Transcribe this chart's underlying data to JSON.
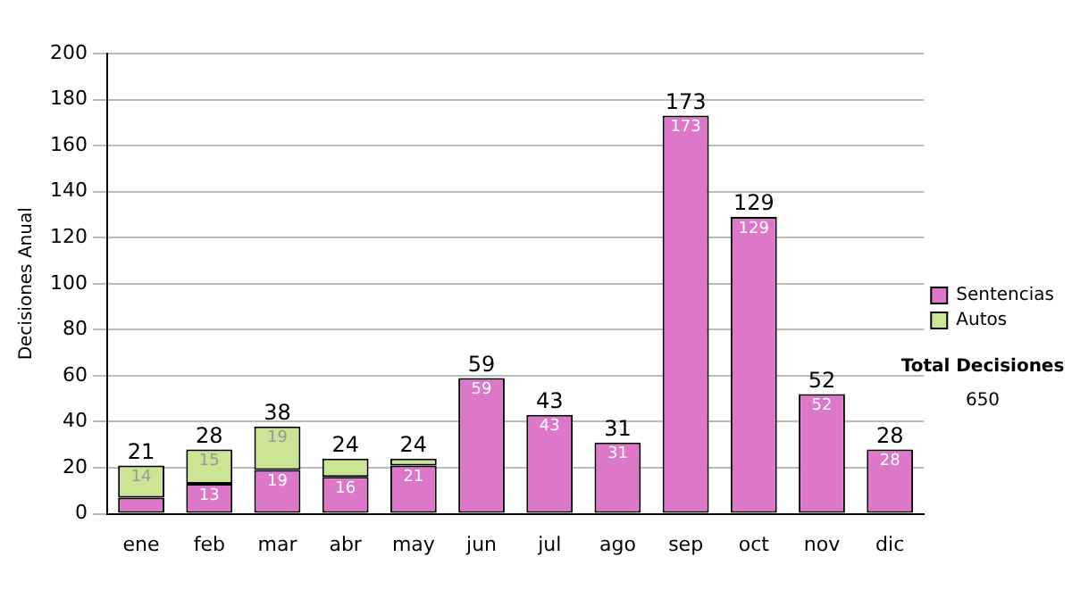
{
  "chart_data": {
    "type": "bar",
    "stacked": true,
    "ylabel": "Decisiones Anual",
    "categories": [
      "ene",
      "feb",
      "mar",
      "abr",
      "may",
      "jun",
      "jul",
      "ago",
      "sep",
      "oct",
      "nov",
      "dic"
    ],
    "series": [
      {
        "name": "Sentencias",
        "color": "#dd77c9",
        "values": [
          7,
          13,
          19,
          16,
          21,
          59,
          43,
          31,
          173,
          129,
          52,
          28
        ],
        "value_labels": [
          null,
          "13",
          "19",
          "16",
          "21",
          "59",
          "43",
          "31",
          "173",
          "129",
          "52",
          "28"
        ]
      },
      {
        "name": "Autos",
        "color": "#cce594",
        "values": [
          14,
          15,
          19,
          8,
          3,
          0,
          0,
          0,
          0,
          0,
          0,
          0
        ],
        "value_labels": [
          "14",
          "15",
          "19",
          null,
          null,
          null,
          null,
          null,
          null,
          null,
          null,
          null
        ]
      }
    ],
    "totals": [
      "21",
      "28",
      "38",
      "24",
      "24",
      "59",
      "43",
      "31",
      "173",
      "129",
      "52",
      "28"
    ],
    "ylim": [
      0,
      200
    ],
    "yticks": [
      0,
      20,
      40,
      60,
      80,
      100,
      120,
      140,
      160,
      180,
      200
    ],
    "grid": "y",
    "legend": "right",
    "annotations": [
      "Total Decisiones",
      "650"
    ]
  }
}
